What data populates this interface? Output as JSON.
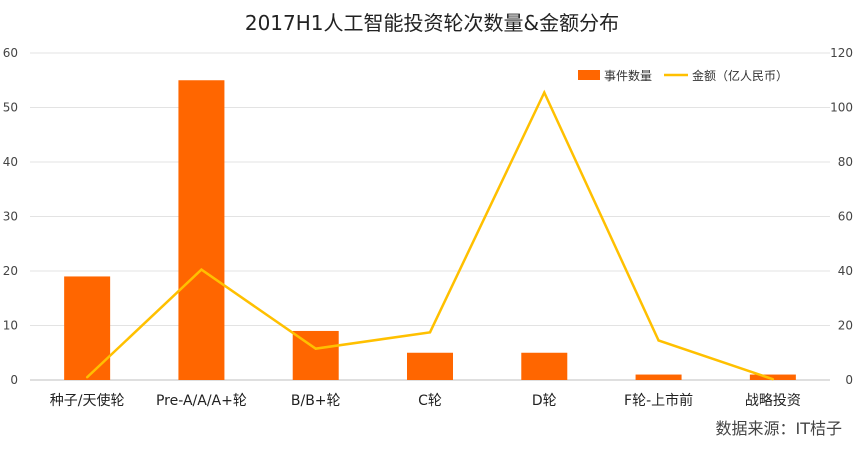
{
  "chart_data": {
    "type": "bar",
    "title": "2017H1人工智能投资轮次数量&金额分布",
    "categories": [
      "种子/天使轮",
      "Pre-A/A/A+轮",
      "B/B+轮",
      "C轮",
      "D轮",
      "F轮-上市前",
      "战略投资"
    ],
    "series": [
      {
        "name": "事件数量",
        "type": "bar",
        "axis": "left",
        "color": "#ff6600",
        "values": [
          19,
          55,
          9,
          5,
          5,
          1,
          1
        ]
      },
      {
        "name": "金额（亿人民币）",
        "type": "line",
        "axis": "right",
        "color": "#ffc000",
        "values": [
          1,
          40.5,
          11.5,
          17.5,
          105.5,
          14.5,
          0.3
        ]
      }
    ],
    "y_left": {
      "min": 0,
      "max": 60,
      "step": 10,
      "ticks": [
        "0",
        "10",
        "20",
        "30",
        "40",
        "50",
        "60"
      ]
    },
    "y_right": {
      "min": 0,
      "max": 120,
      "step": 20,
      "ticks": [
        "0",
        "20",
        "40",
        "60",
        "80",
        "100",
        "120"
      ]
    },
    "grid": true,
    "legend_position": "top-right"
  },
  "source_text": "数据来源：IT桔子"
}
